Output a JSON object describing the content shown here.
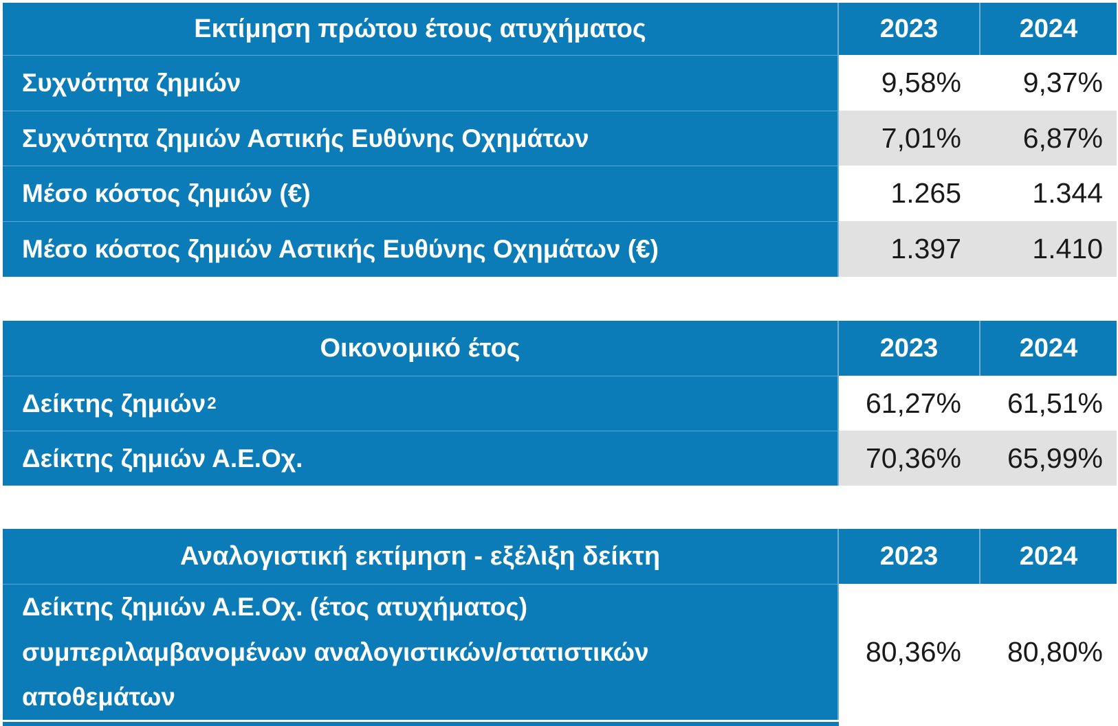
{
  "colors": {
    "accent_blue": "#0b7cb7",
    "row_alt_gray": "#e1e1e1",
    "value_text": "#1a1a1a"
  },
  "tables": [
    {
      "title": "Εκτίμηση πρώτου έτους ατυχήματος",
      "columns": [
        "2023",
        "2024"
      ],
      "rows": [
        {
          "label": "Συχνότητα ζημιών",
          "values": [
            "9,58%",
            "9,37%"
          ]
        },
        {
          "label": "Συχνότητα ζημιών Αστικής Ευθύνης Οχημάτων",
          "values": [
            "7,01%",
            "6,87%"
          ]
        },
        {
          "label": "Μέσο κόστος ζημιών (€)",
          "values": [
            "1.265",
            "1.344"
          ]
        },
        {
          "label": "Μέσο κόστος ζημιών Αστικής Ευθύνης Οχημάτων (€)",
          "values": [
            "1.397",
            "1.410"
          ]
        }
      ]
    },
    {
      "title": "Οικονομικό έτος",
      "columns": [
        "2023",
        "2024"
      ],
      "rows": [
        {
          "label": "Δείκτης ζημιών",
          "label_sup": "2",
          "values": [
            "61,27%",
            "61,51%"
          ]
        },
        {
          "label": "Δείκτης ζημιών Α.Ε.Οχ.",
          "values": [
            "70,36%",
            "65,99%"
          ]
        }
      ]
    },
    {
      "title": "Αναλογιστική εκτίμηση -  εξέλιξη δείκτη",
      "columns": [
        "2023",
        "2024"
      ],
      "rows": [
        {
          "label_lines": [
            "Δείκτης ζημιών Α.Ε.Οχ. (έτος ατυχήματος)",
            "συμπεριλαμβανομένων αναλογιστικών/στατιστικών",
            "αποθεμάτων"
          ],
          "values": [
            "80,36%",
            "80,80%"
          ]
        }
      ]
    }
  ]
}
